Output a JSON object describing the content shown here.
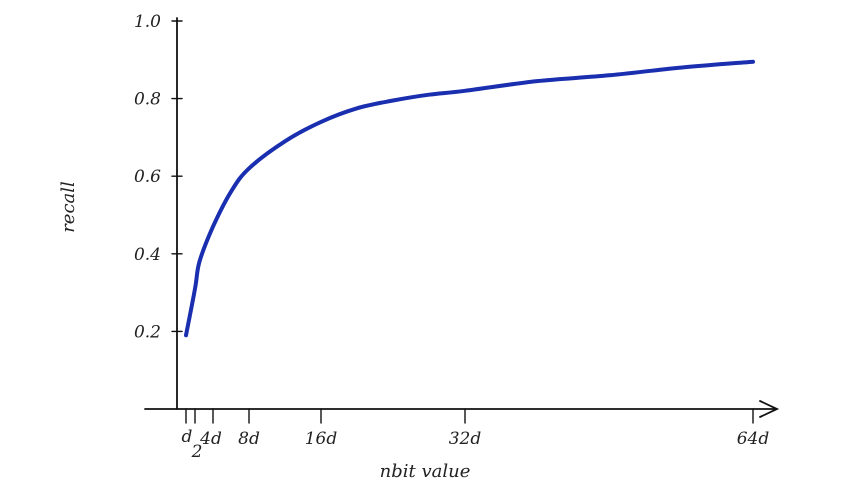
{
  "chart_data": {
    "type": "line",
    "xlabel": "nbit value",
    "ylabel": "recall",
    "xlim": [
      0,
      64
    ],
    "ylim": [
      0,
      1.0
    ],
    "x_tick_values": [
      1,
      2,
      4,
      8,
      16,
      32,
      64
    ],
    "x_tick_labels": [
      "d",
      "2",
      "4d",
      "8d",
      "16d",
      "32d",
      "64d"
    ],
    "y_tick_values": [
      0.2,
      0.4,
      0.6,
      0.8,
      1.0
    ],
    "y_tick_labels": [
      "0.2",
      "0.4",
      "0.6",
      "0.8",
      "1.0"
    ],
    "grid": false,
    "series": [
      {
        "color": "#1a2fb0",
        "x": [
          1,
          2,
          2.5,
          4,
          6,
          8,
          12,
          16,
          20,
          24,
          28,
          32,
          40,
          48,
          56,
          64
        ],
        "y": [
          0.19,
          0.31,
          0.38,
          0.47,
          0.56,
          0.62,
          0.69,
          0.74,
          0.775,
          0.795,
          0.81,
          0.82,
          0.845,
          0.86,
          0.88,
          0.895
        ]
      }
    ]
  }
}
